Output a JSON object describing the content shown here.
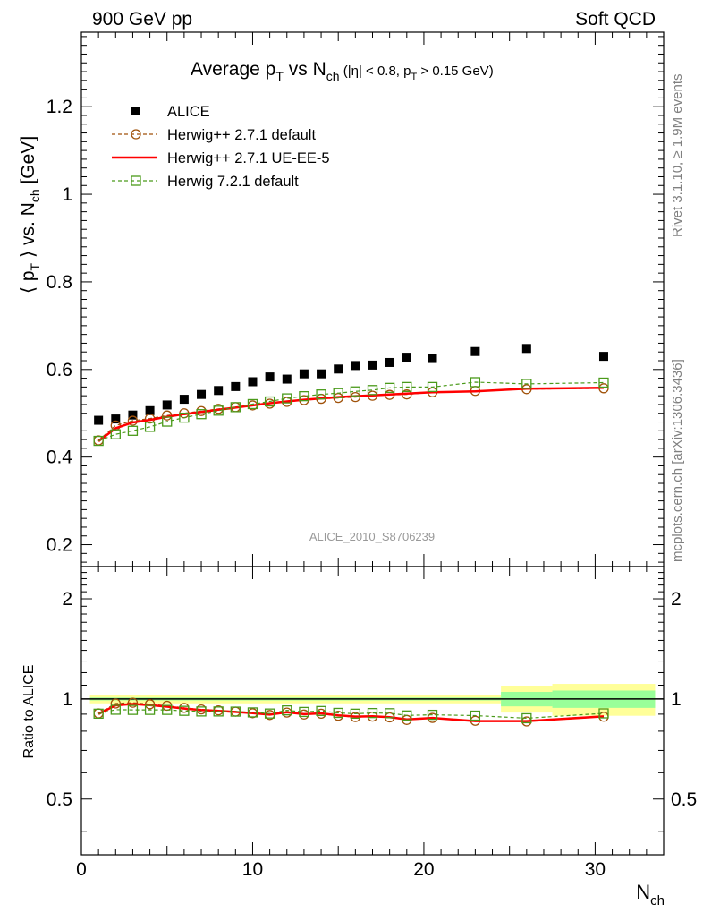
{
  "header": {
    "left": "900 GeV pp",
    "right": "Soft QCD"
  },
  "side_labels": {
    "top": "Rivet 3.1.10, ≥ 1.9M events",
    "bottom": "mcplots.cern.ch [arXiv:1306.3436]"
  },
  "chart_data": [
    {
      "type": "scatter",
      "title": {
        "main": "Average p",
        "sub1": "T",
        "mid": " vs N",
        "sub2": "ch",
        "cut_a": " (|η| < 0.8, p",
        "cut_sub": "T",
        "cut_b": " > 0.15 GeV)"
      },
      "ylabel": {
        "a": "⟨ p",
        "sub1": "T",
        "b": " ⟩ vs. N",
        "sub2": "ch",
        "c": " [GeV]"
      },
      "watermark": "ALICE_2010_S8706239",
      "xlim": [
        0,
        34
      ],
      "ylim": [
        0.15,
        1.37
      ],
      "yticks": [
        "0.2",
        "0.4",
        "0.6",
        "0.8",
        "1",
        "1.2"
      ],
      "legend": {
        "position": "top-left",
        "entries": [
          {
            "label": "ALICE",
            "color": "#000000",
            "marker": "filled-square",
            "line": "none"
          },
          {
            "label": "Herwig++ 2.7.1 default",
            "color": "#a0520a",
            "marker": "open-circle",
            "line": "dashed"
          },
          {
            "label": "Herwig++ 2.7.1 UE-EE-5",
            "color": "#ff0000",
            "marker": "none",
            "line": "solid"
          },
          {
            "label": "Herwig 7.2.1 default",
            "color": "#4a9a1a",
            "marker": "open-square",
            "line": "dashed"
          }
        ]
      },
      "series": [
        {
          "name": "ALICE",
          "x": [
            1,
            2,
            3,
            4,
            5,
            6,
            7,
            8,
            9,
            10,
            11,
            12,
            13,
            14,
            15,
            16,
            17,
            18,
            19,
            20.5,
            23,
            26,
            30.5
          ],
          "y": [
            0.484,
            0.487,
            0.496,
            0.506,
            0.519,
            0.532,
            0.543,
            0.552,
            0.561,
            0.572,
            0.583,
            0.578,
            0.59,
            0.59,
            0.601,
            0.609,
            0.61,
            0.616,
            0.628,
            0.625,
            0.641,
            0.648,
            0.63
          ]
        },
        {
          "name": "Herwig++ 2.7.1 default",
          "x": [
            1,
            2,
            3,
            4,
            5,
            6,
            7,
            8,
            9,
            10,
            11,
            12,
            13,
            14,
            15,
            16,
            17,
            18,
            19,
            20.5,
            23,
            26,
            30.5
          ],
          "y": [
            0.438,
            0.472,
            0.483,
            0.488,
            0.495,
            0.5,
            0.505,
            0.51,
            0.514,
            0.518,
            0.522,
            0.526,
            0.53,
            0.533,
            0.535,
            0.537,
            0.54,
            0.542,
            0.543,
            0.548,
            0.551,
            0.555,
            0.557
          ]
        },
        {
          "name": "Herwig++ 2.7.1 UE-EE-5",
          "x": [
            1,
            2,
            3,
            4,
            5,
            6,
            7,
            8,
            9,
            10,
            11,
            12,
            13,
            14,
            15,
            16,
            17,
            18,
            19,
            20.5,
            23,
            26,
            30.5
          ],
          "y": [
            0.436,
            0.466,
            0.479,
            0.485,
            0.492,
            0.498,
            0.503,
            0.508,
            0.513,
            0.518,
            0.523,
            0.527,
            0.531,
            0.534,
            0.537,
            0.539,
            0.541,
            0.543,
            0.545,
            0.548,
            0.55,
            0.556,
            0.558
          ]
        },
        {
          "name": "Herwig 7.2.1 default",
          "x": [
            1,
            2,
            3,
            4,
            5,
            6,
            7,
            8,
            9,
            10,
            11,
            12,
            13,
            14,
            15,
            16,
            17,
            18,
            19,
            20.5,
            23,
            26,
            30.5
          ],
          "y": [
            0.437,
            0.452,
            0.46,
            0.469,
            0.481,
            0.49,
            0.498,
            0.506,
            0.514,
            0.521,
            0.527,
            0.534,
            0.539,
            0.543,
            0.546,
            0.55,
            0.553,
            0.558,
            0.56,
            0.56,
            0.571,
            0.567,
            0.57
          ]
        }
      ]
    },
    {
      "type": "line",
      "ylabel": "Ratio to ALICE",
      "xlabel": {
        "a": "N",
        "sub": "ch"
      },
      "xlim": [
        0,
        34
      ],
      "ylim": [
        0.34,
        2.5
      ],
      "yscale": "log",
      "yticks": [
        "0.5",
        "1",
        "2"
      ],
      "xticks": [
        "0",
        "10",
        "20",
        "30"
      ],
      "reference_line": 1,
      "uncertainty_bands": [
        {
          "x": [
            0.5,
            24.5
          ],
          "stat": 0.01,
          "total": 0.03
        },
        {
          "x": [
            24.5,
            27.5
          ],
          "stat": 0.05,
          "total": 0.09
        },
        {
          "x": [
            27.5,
            33.5
          ],
          "stat": 0.06,
          "total": 0.11
        }
      ],
      "series": [
        {
          "name": "Herwig++ 2.7.1 default",
          "x": [
            1,
            2,
            3,
            4,
            5,
            6,
            7,
            8,
            9,
            10,
            11,
            12,
            13,
            14,
            15,
            16,
            17,
            18,
            19,
            20.5,
            23,
            26,
            30.5
          ],
          "y": [
            0.905,
            0.969,
            0.974,
            0.964,
            0.954,
            0.94,
            0.93,
            0.924,
            0.916,
            0.906,
            0.895,
            0.91,
            0.898,
            0.903,
            0.89,
            0.882,
            0.885,
            0.88,
            0.865,
            0.877,
            0.86,
            0.856,
            0.884
          ]
        },
        {
          "name": "Herwig++ 2.7.1 UE-EE-5",
          "x": [
            1,
            2,
            3,
            4,
            5,
            6,
            7,
            8,
            9,
            10,
            11,
            12,
            13,
            14,
            15,
            16,
            17,
            18,
            19,
            20.5,
            23,
            26,
            30.5
          ],
          "y": [
            0.901,
            0.957,
            0.966,
            0.958,
            0.948,
            0.936,
            0.926,
            0.92,
            0.914,
            0.906,
            0.897,
            0.912,
            0.9,
            0.905,
            0.893,
            0.885,
            0.887,
            0.881,
            0.868,
            0.877,
            0.858,
            0.858,
            0.886
          ]
        },
        {
          "name": "Herwig 7.2.1 default",
          "x": [
            1,
            2,
            3,
            4,
            5,
            6,
            7,
            8,
            9,
            10,
            11,
            12,
            13,
            14,
            15,
            16,
            17,
            18,
            19,
            20.5,
            23,
            26,
            30.5
          ],
          "y": [
            0.903,
            0.928,
            0.927,
            0.927,
            0.927,
            0.921,
            0.917,
            0.917,
            0.916,
            0.911,
            0.904,
            0.924,
            0.914,
            0.92,
            0.908,
            0.903,
            0.907,
            0.906,
            0.892,
            0.896,
            0.891,
            0.875,
            0.905
          ]
        }
      ]
    }
  ]
}
